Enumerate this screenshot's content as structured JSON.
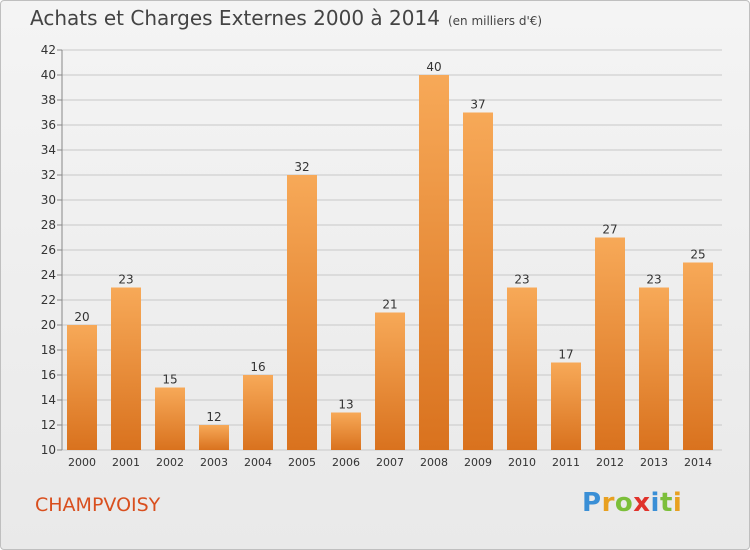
{
  "title": "Achats et Charges Externes 2000 à 2014",
  "subtitle": "(en milliers d'€)",
  "commune": "CHAMPVOISY",
  "logo": {
    "text": "Proxiti",
    "letters": [
      "P",
      "r",
      "o",
      "x",
      "i",
      "t",
      "i"
    ],
    "colors": [
      "#3a8fd6",
      "#e8a020",
      "#7cbf3a",
      "#e0322b",
      "#3a8fd6",
      "#7cbf3a",
      "#e8a020"
    ]
  },
  "colors": {
    "bar_light": "#f7a958",
    "bar_dark": "#d9721e",
    "grid": "#c8c8c8",
    "axis_text": "#333333"
  },
  "chart_data": {
    "type": "bar",
    "categories": [
      "2000",
      "2001",
      "2002",
      "2003",
      "2004",
      "2005",
      "2006",
      "2007",
      "2008",
      "2009",
      "2010",
      "2011",
      "2012",
      "2013",
      "2014"
    ],
    "values": [
      20,
      23,
      15,
      12,
      16,
      32,
      13,
      21,
      40,
      37,
      23,
      17,
      27,
      23,
      25
    ],
    "ylim": [
      10,
      42
    ],
    "yticks": [
      10,
      12,
      14,
      16,
      18,
      20,
      22,
      24,
      26,
      28,
      30,
      32,
      34,
      36,
      38,
      40,
      42
    ],
    "grid": true,
    "data_labels": true
  }
}
